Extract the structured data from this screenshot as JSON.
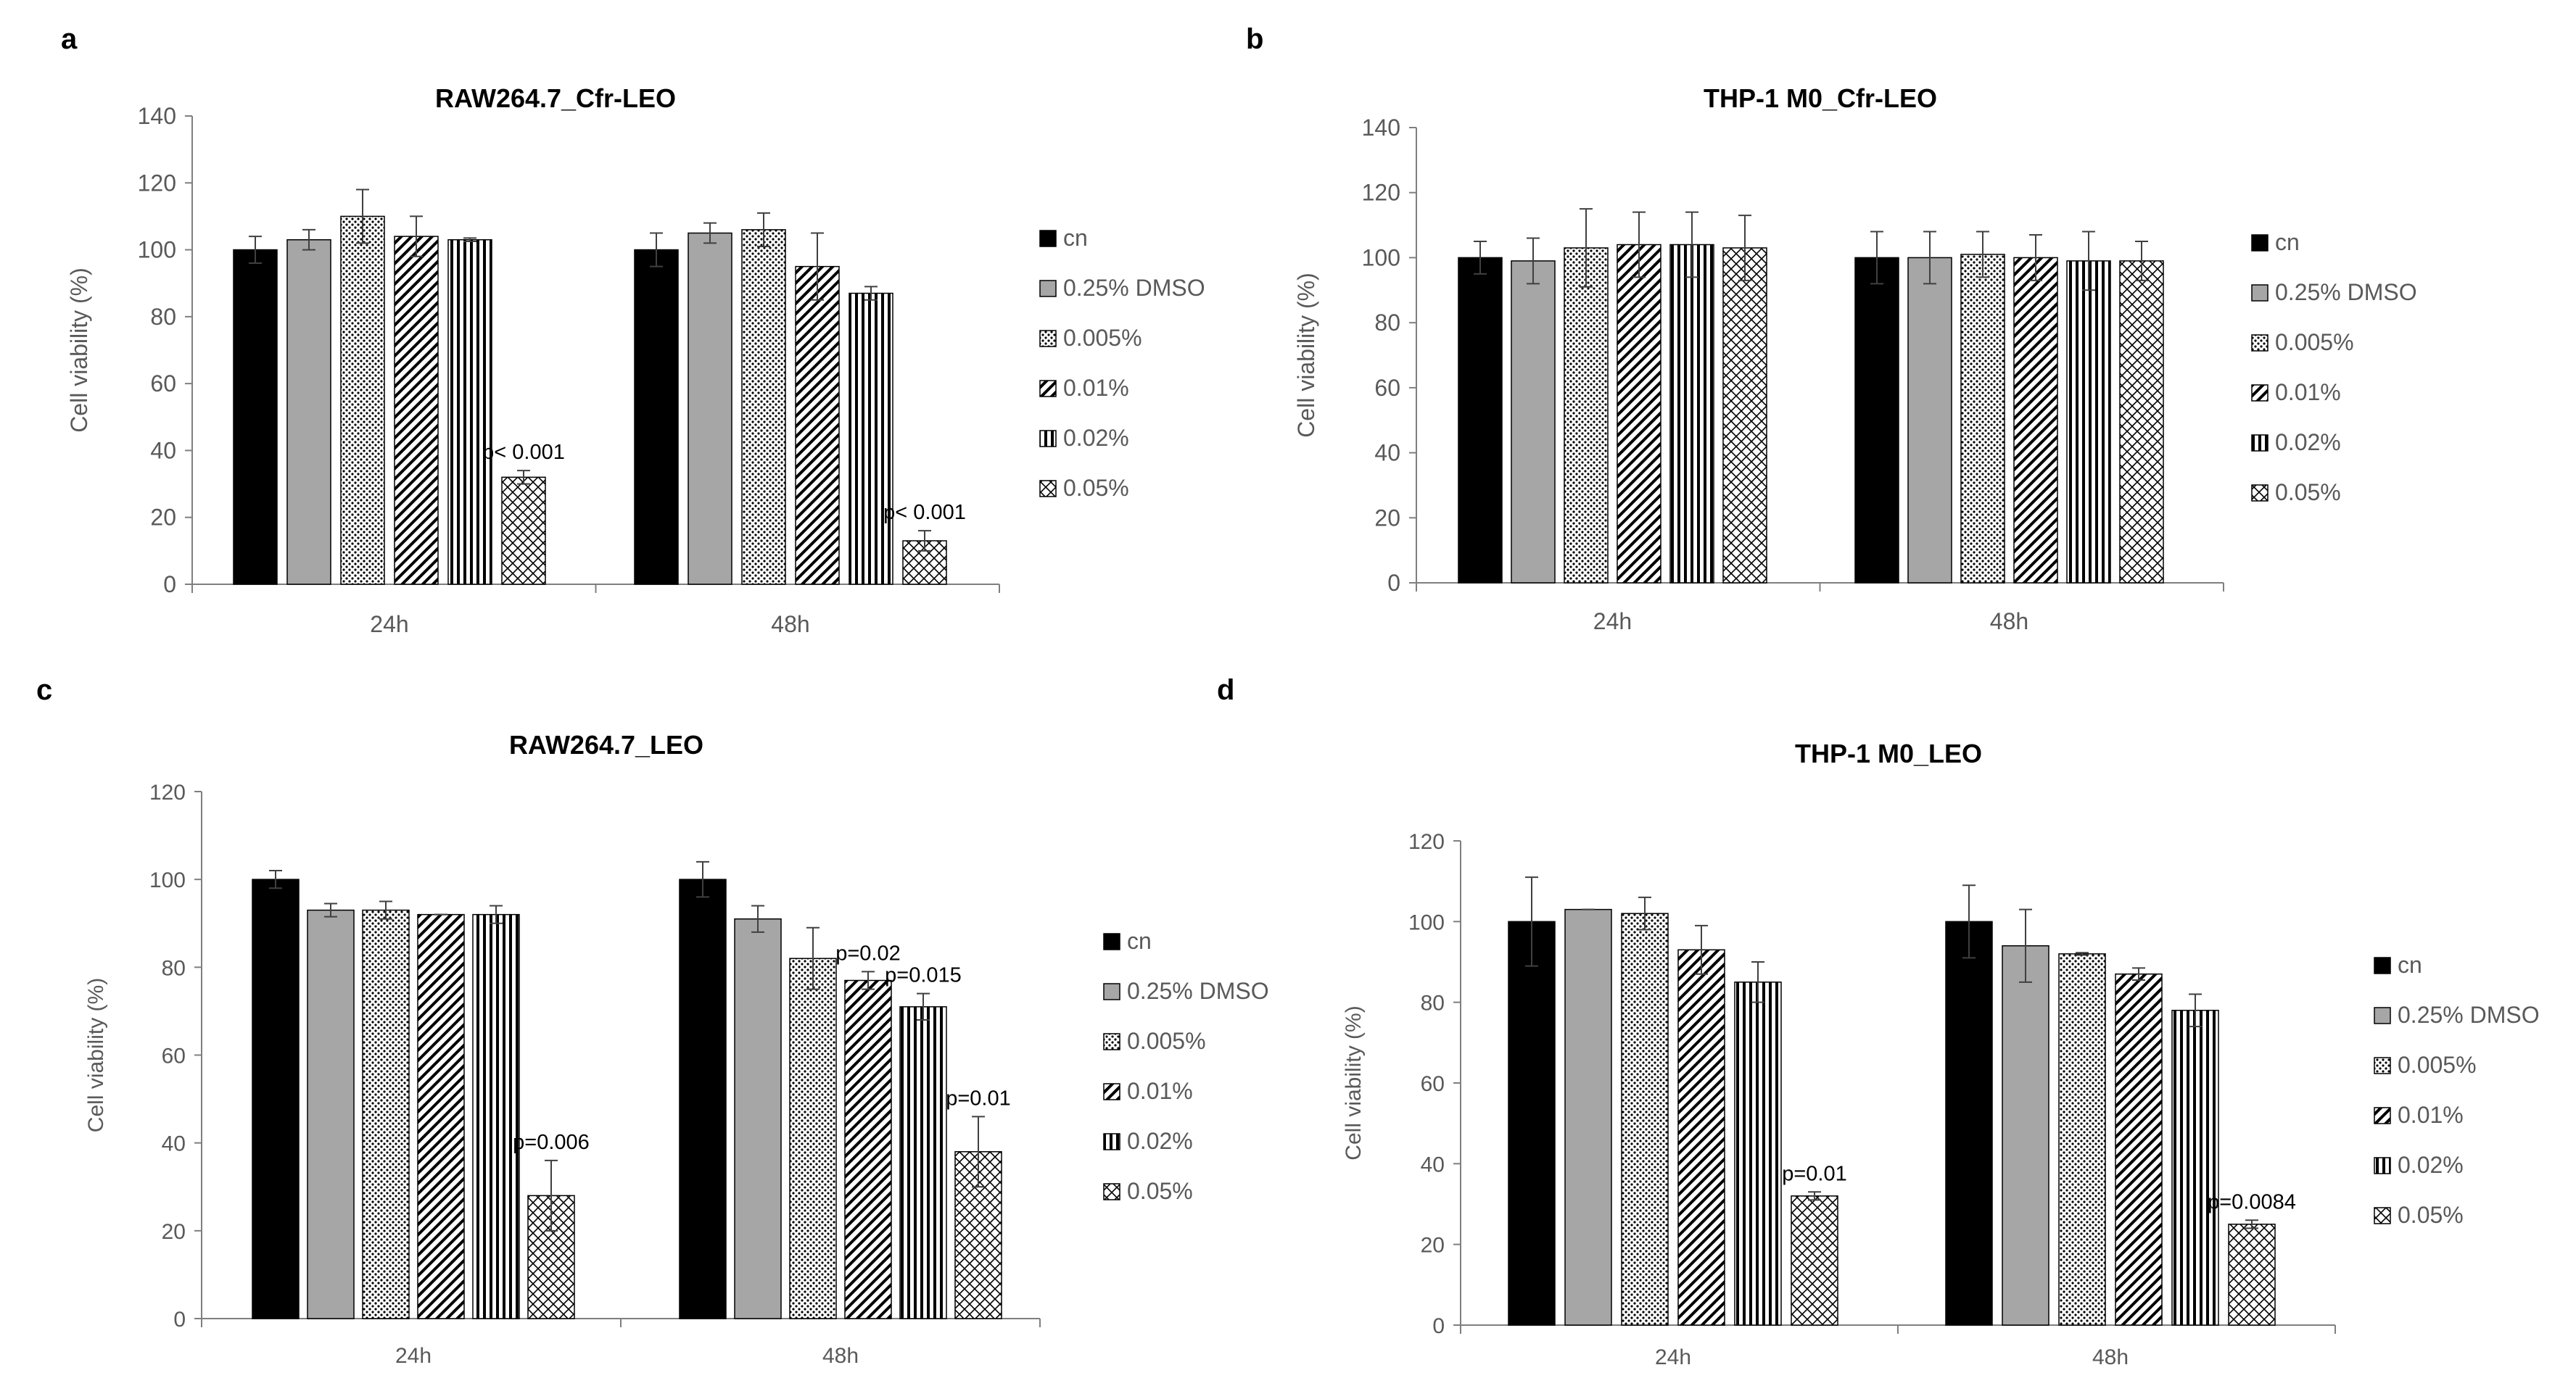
{
  "colors": {
    "axis": "#7f7f7f",
    "tick_text": "#595959",
    "bar_edge": "#000000",
    "cn": "#000000",
    "dmso": "#a6a6a6",
    "pattern_bg": "#ffffff"
  },
  "legend": {
    "series": [
      {
        "name": "cn",
        "style": "solid-black"
      },
      {
        "name": "0.25% DMSO",
        "style": "solid-gray"
      },
      {
        "name": "0.005%",
        "style": "dots"
      },
      {
        "name": "0.01%",
        "style": "diagonal"
      },
      {
        "name": "0.02%",
        "style": "vertical"
      },
      {
        "name": "0.05%",
        "style": "crosshatch"
      }
    ]
  },
  "chart_data": [
    {
      "panel": "a",
      "type": "bar",
      "title": "RAW264.7_Cfr-LEO",
      "ylabel": "Cell viability (%)",
      "xlabel": "",
      "ylim": [
        0,
        140
      ],
      "yticks": [
        0,
        20,
        40,
        60,
        80,
        100,
        120,
        140
      ],
      "categories": [
        "24h",
        "48h"
      ],
      "series": [
        {
          "name": "cn",
          "values": [
            100,
            100
          ],
          "errors": [
            4,
            5
          ]
        },
        {
          "name": "0.25% DMSO",
          "values": [
            103,
            105
          ],
          "errors": [
            3,
            3
          ]
        },
        {
          "name": "0.005%",
          "values": [
            110,
            106
          ],
          "errors": [
            8,
            5
          ]
        },
        {
          "name": "0.01%",
          "values": [
            104,
            95
          ],
          "errors": [
            6,
            10
          ]
        },
        {
          "name": "0.02%",
          "values": [
            103,
            87
          ],
          "errors": [
            0.5,
            2
          ]
        },
        {
          "name": "0.05%",
          "values": [
            32,
            13
          ],
          "errors": [
            2,
            3
          ]
        }
      ],
      "annotations": [
        {
          "series": "0.05%",
          "category": "24h",
          "text": "p< 0.001"
        },
        {
          "series": "0.05%",
          "category": "48h",
          "text": "p< 0.001"
        }
      ]
    },
    {
      "panel": "b",
      "type": "bar",
      "title": "THP-1 M0_Cfr-LEO",
      "ylabel": "Cell viability (%)",
      "xlabel": "",
      "ylim": [
        0,
        140
      ],
      "yticks": [
        0,
        20,
        40,
        60,
        80,
        100,
        120,
        140
      ],
      "categories": [
        "24h",
        "48h"
      ],
      "series": [
        {
          "name": "cn",
          "values": [
            100,
            100
          ],
          "errors": [
            5,
            8
          ]
        },
        {
          "name": "0.25% DMSO",
          "values": [
            99,
            100
          ],
          "errors": [
            7,
            8
          ]
        },
        {
          "name": "0.005%",
          "values": [
            103,
            101
          ],
          "errors": [
            12,
            7
          ]
        },
        {
          "name": "0.01%",
          "values": [
            104,
            100
          ],
          "errors": [
            10,
            7
          ]
        },
        {
          "name": "0.02%",
          "values": [
            104,
            99
          ],
          "errors": [
            10,
            9
          ]
        },
        {
          "name": "0.05%",
          "values": [
            103,
            99
          ],
          "errors": [
            10,
            6
          ]
        }
      ],
      "annotations": []
    },
    {
      "panel": "c",
      "type": "bar",
      "title": "RAW264.7_LEO",
      "ylabel": "Cell viability (%)",
      "xlabel": "",
      "ylim": [
        0,
        120
      ],
      "yticks": [
        0,
        20,
        40,
        60,
        80,
        100,
        120
      ],
      "categories": [
        "24h",
        "48h"
      ],
      "series": [
        {
          "name": "cn",
          "values": [
            100,
            100
          ],
          "errors": [
            2,
            4
          ]
        },
        {
          "name": "0.25% DMSO",
          "values": [
            93,
            91
          ],
          "errors": [
            1.5,
            3
          ]
        },
        {
          "name": "0.005%",
          "values": [
            93,
            82
          ],
          "errors": [
            2,
            7
          ]
        },
        {
          "name": "0.01%",
          "values": [
            92,
            77
          ],
          "errors": [
            0,
            2
          ]
        },
        {
          "name": "0.02%",
          "values": [
            92,
            71
          ],
          "errors": [
            2,
            3
          ]
        },
        {
          "name": "0.05%",
          "values": [
            28,
            38
          ],
          "errors": [
            8,
            8
          ]
        }
      ],
      "annotations": [
        {
          "series": "0.05%",
          "category": "24h",
          "text": "p=0.006"
        },
        {
          "series": "0.01%",
          "category": "48h",
          "text": "p=0.02"
        },
        {
          "series": "0.02%",
          "category": "48h",
          "text": "p=0.015"
        },
        {
          "series": "0.05%",
          "category": "48h",
          "text": "p=0.01"
        }
      ]
    },
    {
      "panel": "d",
      "type": "bar",
      "title": "THP-1 M0_LEO",
      "ylabel": "Cell viability (%)",
      "xlabel": "",
      "ylim": [
        0,
        120
      ],
      "yticks": [
        0,
        20,
        40,
        60,
        80,
        100,
        120
      ],
      "categories": [
        "24h",
        "48h"
      ],
      "series": [
        {
          "name": "cn",
          "values": [
            100,
            100
          ],
          "errors": [
            11,
            9
          ]
        },
        {
          "name": "0.25% DMSO",
          "values": [
            103,
            94
          ],
          "errors": [
            0,
            9
          ]
        },
        {
          "name": "0.005%",
          "values": [
            102,
            92
          ],
          "errors": [
            4,
            0.3
          ]
        },
        {
          "name": "0.01%",
          "values": [
            93,
            87
          ],
          "errors": [
            6,
            1.5
          ]
        },
        {
          "name": "0.02%",
          "values": [
            85,
            78
          ],
          "errors": [
            5,
            4
          ]
        },
        {
          "name": "0.05%",
          "values": [
            32,
            25
          ],
          "errors": [
            1,
            1
          ]
        }
      ],
      "annotations": [
        {
          "series": "0.05%",
          "category": "24h",
          "text": "p=0.01"
        },
        {
          "series": "0.05%",
          "category": "48h",
          "text": "p=0.0084"
        }
      ]
    }
  ]
}
